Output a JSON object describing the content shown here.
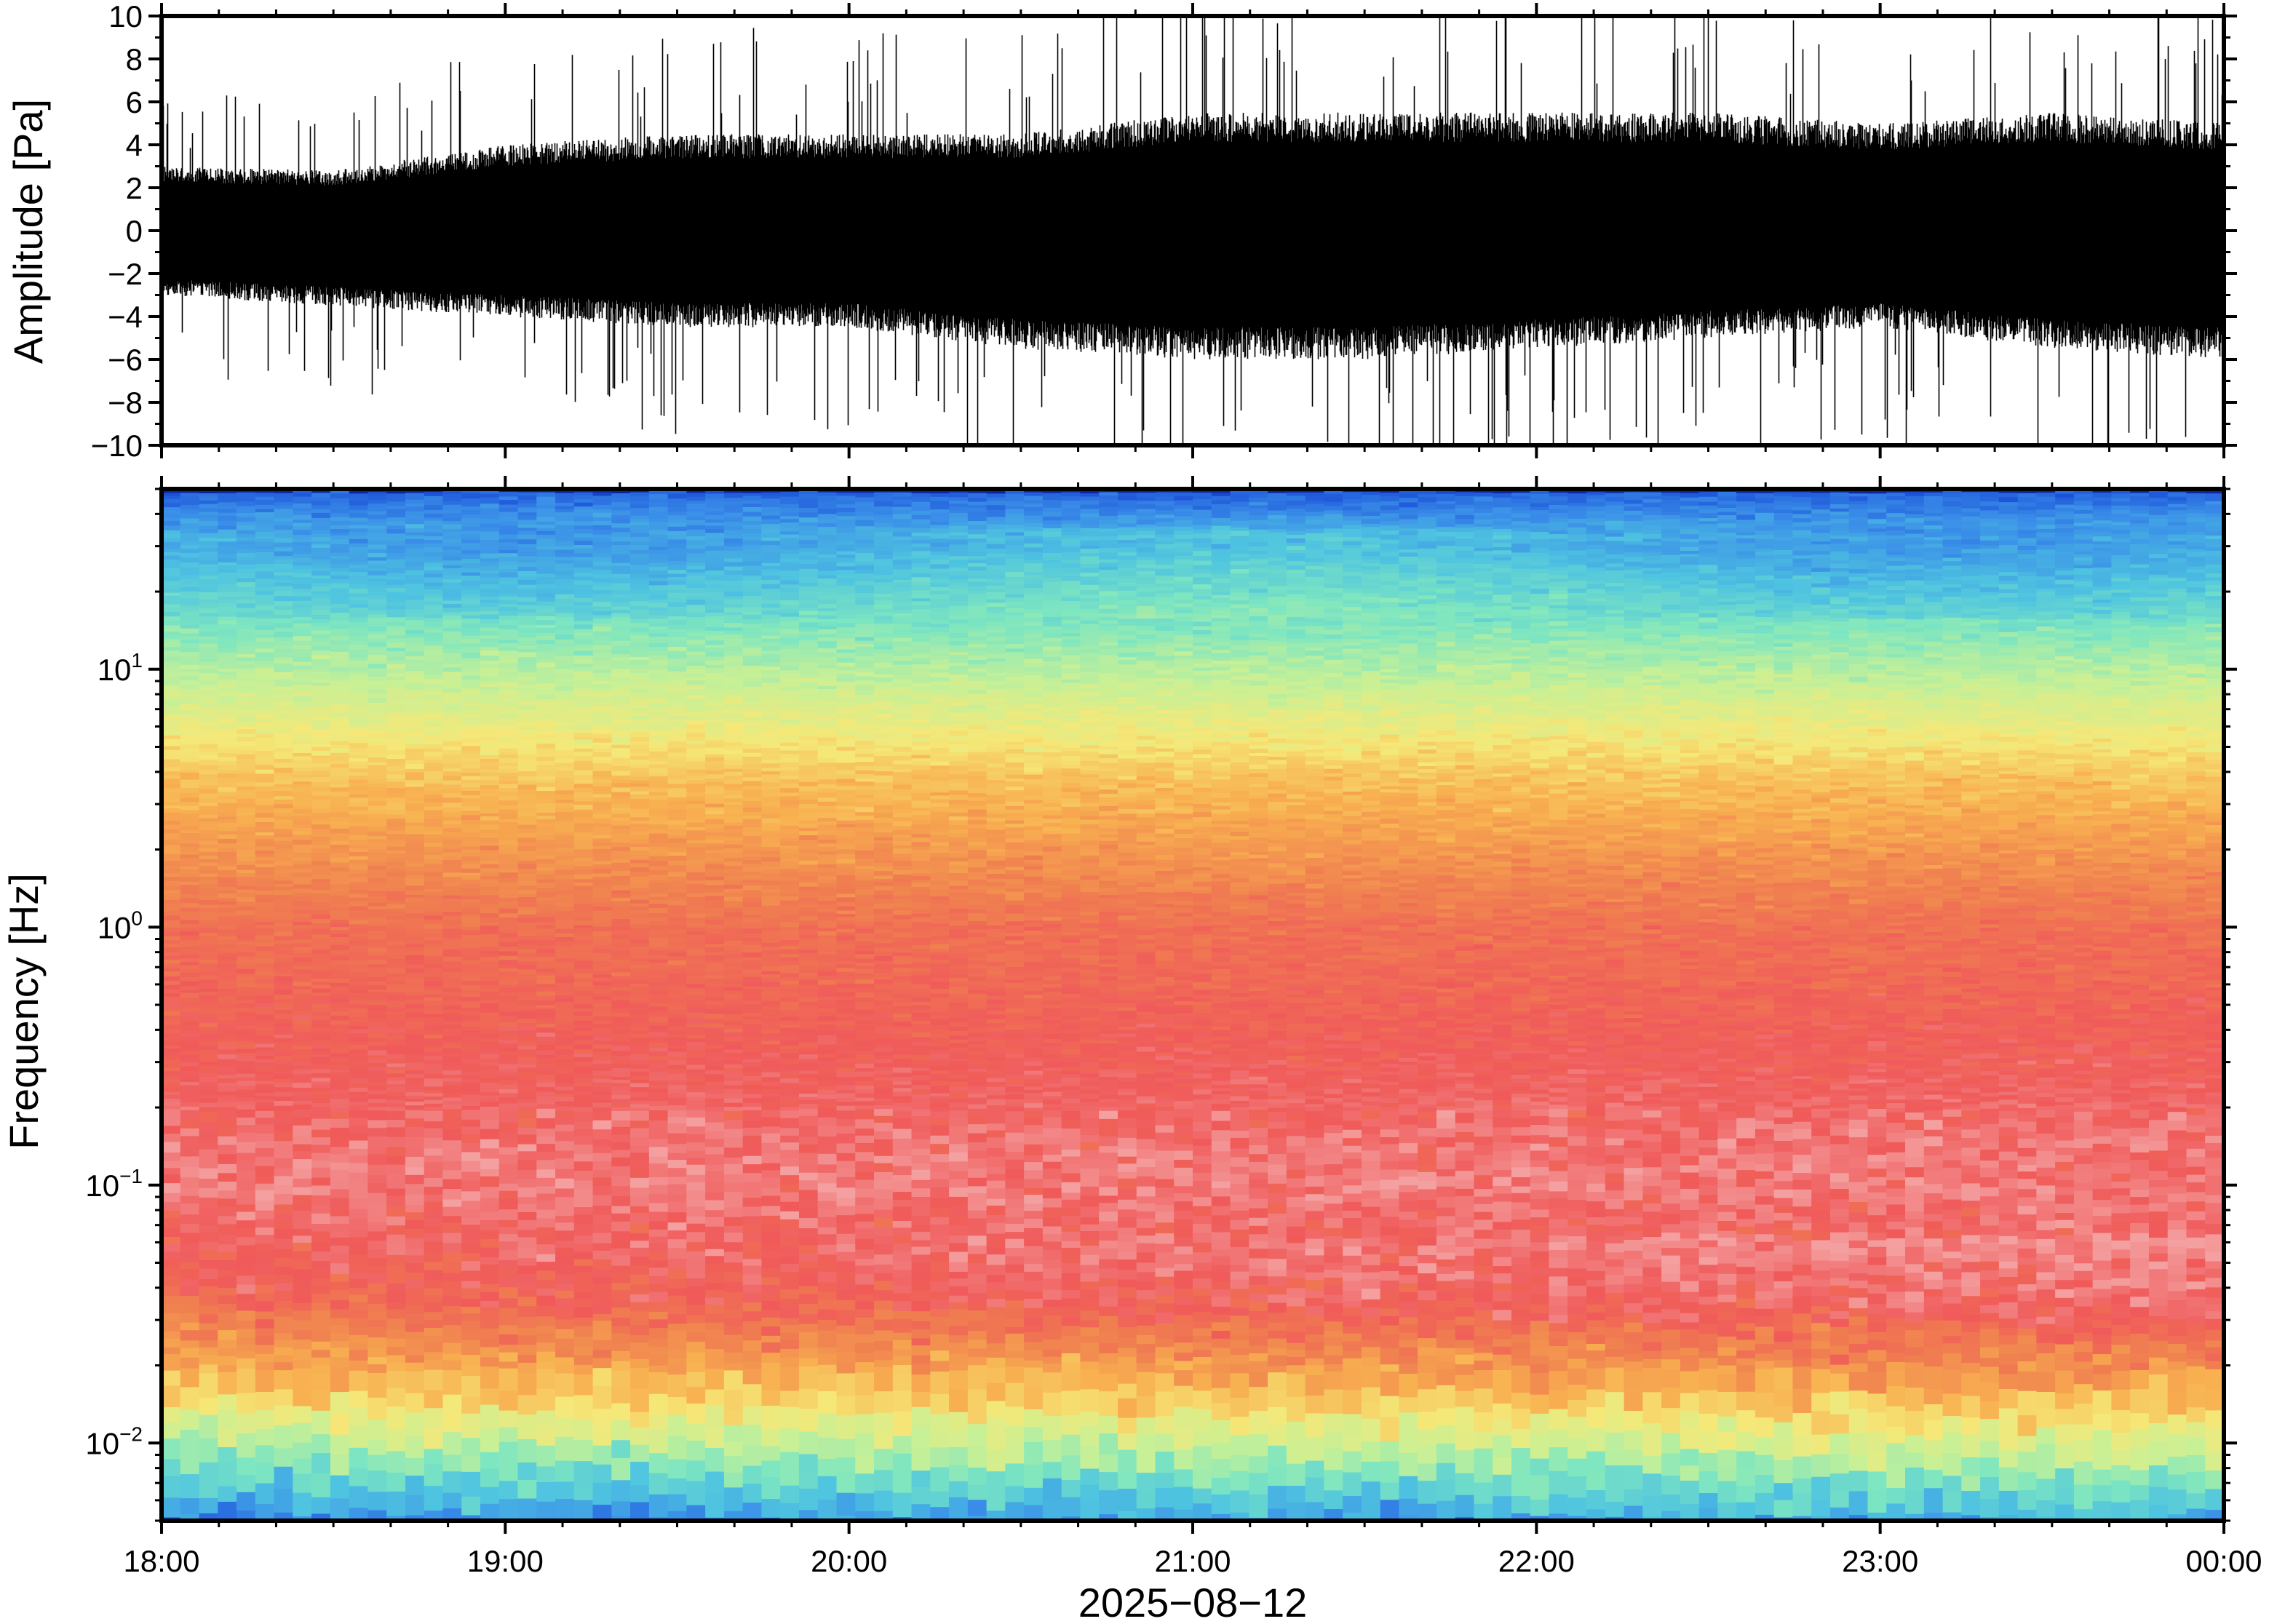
{
  "chart_data": [
    {
      "type": "line",
      "panel": "waveform",
      "ylabel": "Amplitude [Pa]",
      "ylim": [
        -10,
        10
      ],
      "yticks": [
        -10,
        -8,
        -6,
        -4,
        -2,
        0,
        2,
        4,
        6,
        8,
        10
      ],
      "ytick_labels": [
        "−10",
        "−8",
        "−6",
        "−4",
        "−2",
        "0",
        "2",
        "4",
        "6",
        "8",
        "10"
      ],
      "x": [
        "18:00",
        "18:30",
        "19:00",
        "19:30",
        "20:00",
        "20:30",
        "21:00",
        "21:30",
        "22:00",
        "22:30",
        "23:00",
        "23:30",
        "00:00"
      ],
      "series": [
        {
          "values_upper_envelope": [
            3,
            2.8,
            4,
            4.5,
            4.5,
            4.5,
            5.5,
            5.5,
            5.5,
            5.5,
            5,
            5.5,
            5
          ],
          "values_lower_envelope": [
            -3,
            -3.5,
            -4,
            -4.5,
            -4.5,
            -5.5,
            -6,
            -6,
            -5.5,
            -5,
            -4.5,
            -5.5,
            -6
          ]
        }
      ],
      "color": "#000000"
    },
    {
      "type": "heatmap",
      "panel": "spectrogram",
      "ylabel": "Frequency [Hz]",
      "yscale": "log",
      "ylim": [
        0.005,
        50
      ],
      "yticks": [
        0.01,
        0.1,
        1,
        10
      ],
      "ytick_labels": [
        {
          "base": "10",
          "exp": "−2"
        },
        {
          "base": "10",
          "exp": "−1"
        },
        {
          "base": "10",
          "exp": "0"
        },
        {
          "base": "10",
          "exp": "1"
        }
      ],
      "xlabel": "2025−08−12",
      "x_tick_labels": [
        "18:00",
        "19:00",
        "20:00",
        "21:00",
        "22:00",
        "23:00",
        "00:00"
      ],
      "colormap": [
        "#0a1a8c",
        "#1a4ed8",
        "#3a8ee8",
        "#4fc4e0",
        "#7ee6c0",
        "#c8f096",
        "#f5e878",
        "#f8b050",
        "#f08050",
        "#f05a5a",
        "#f4a0a0"
      ]
    }
  ]
}
